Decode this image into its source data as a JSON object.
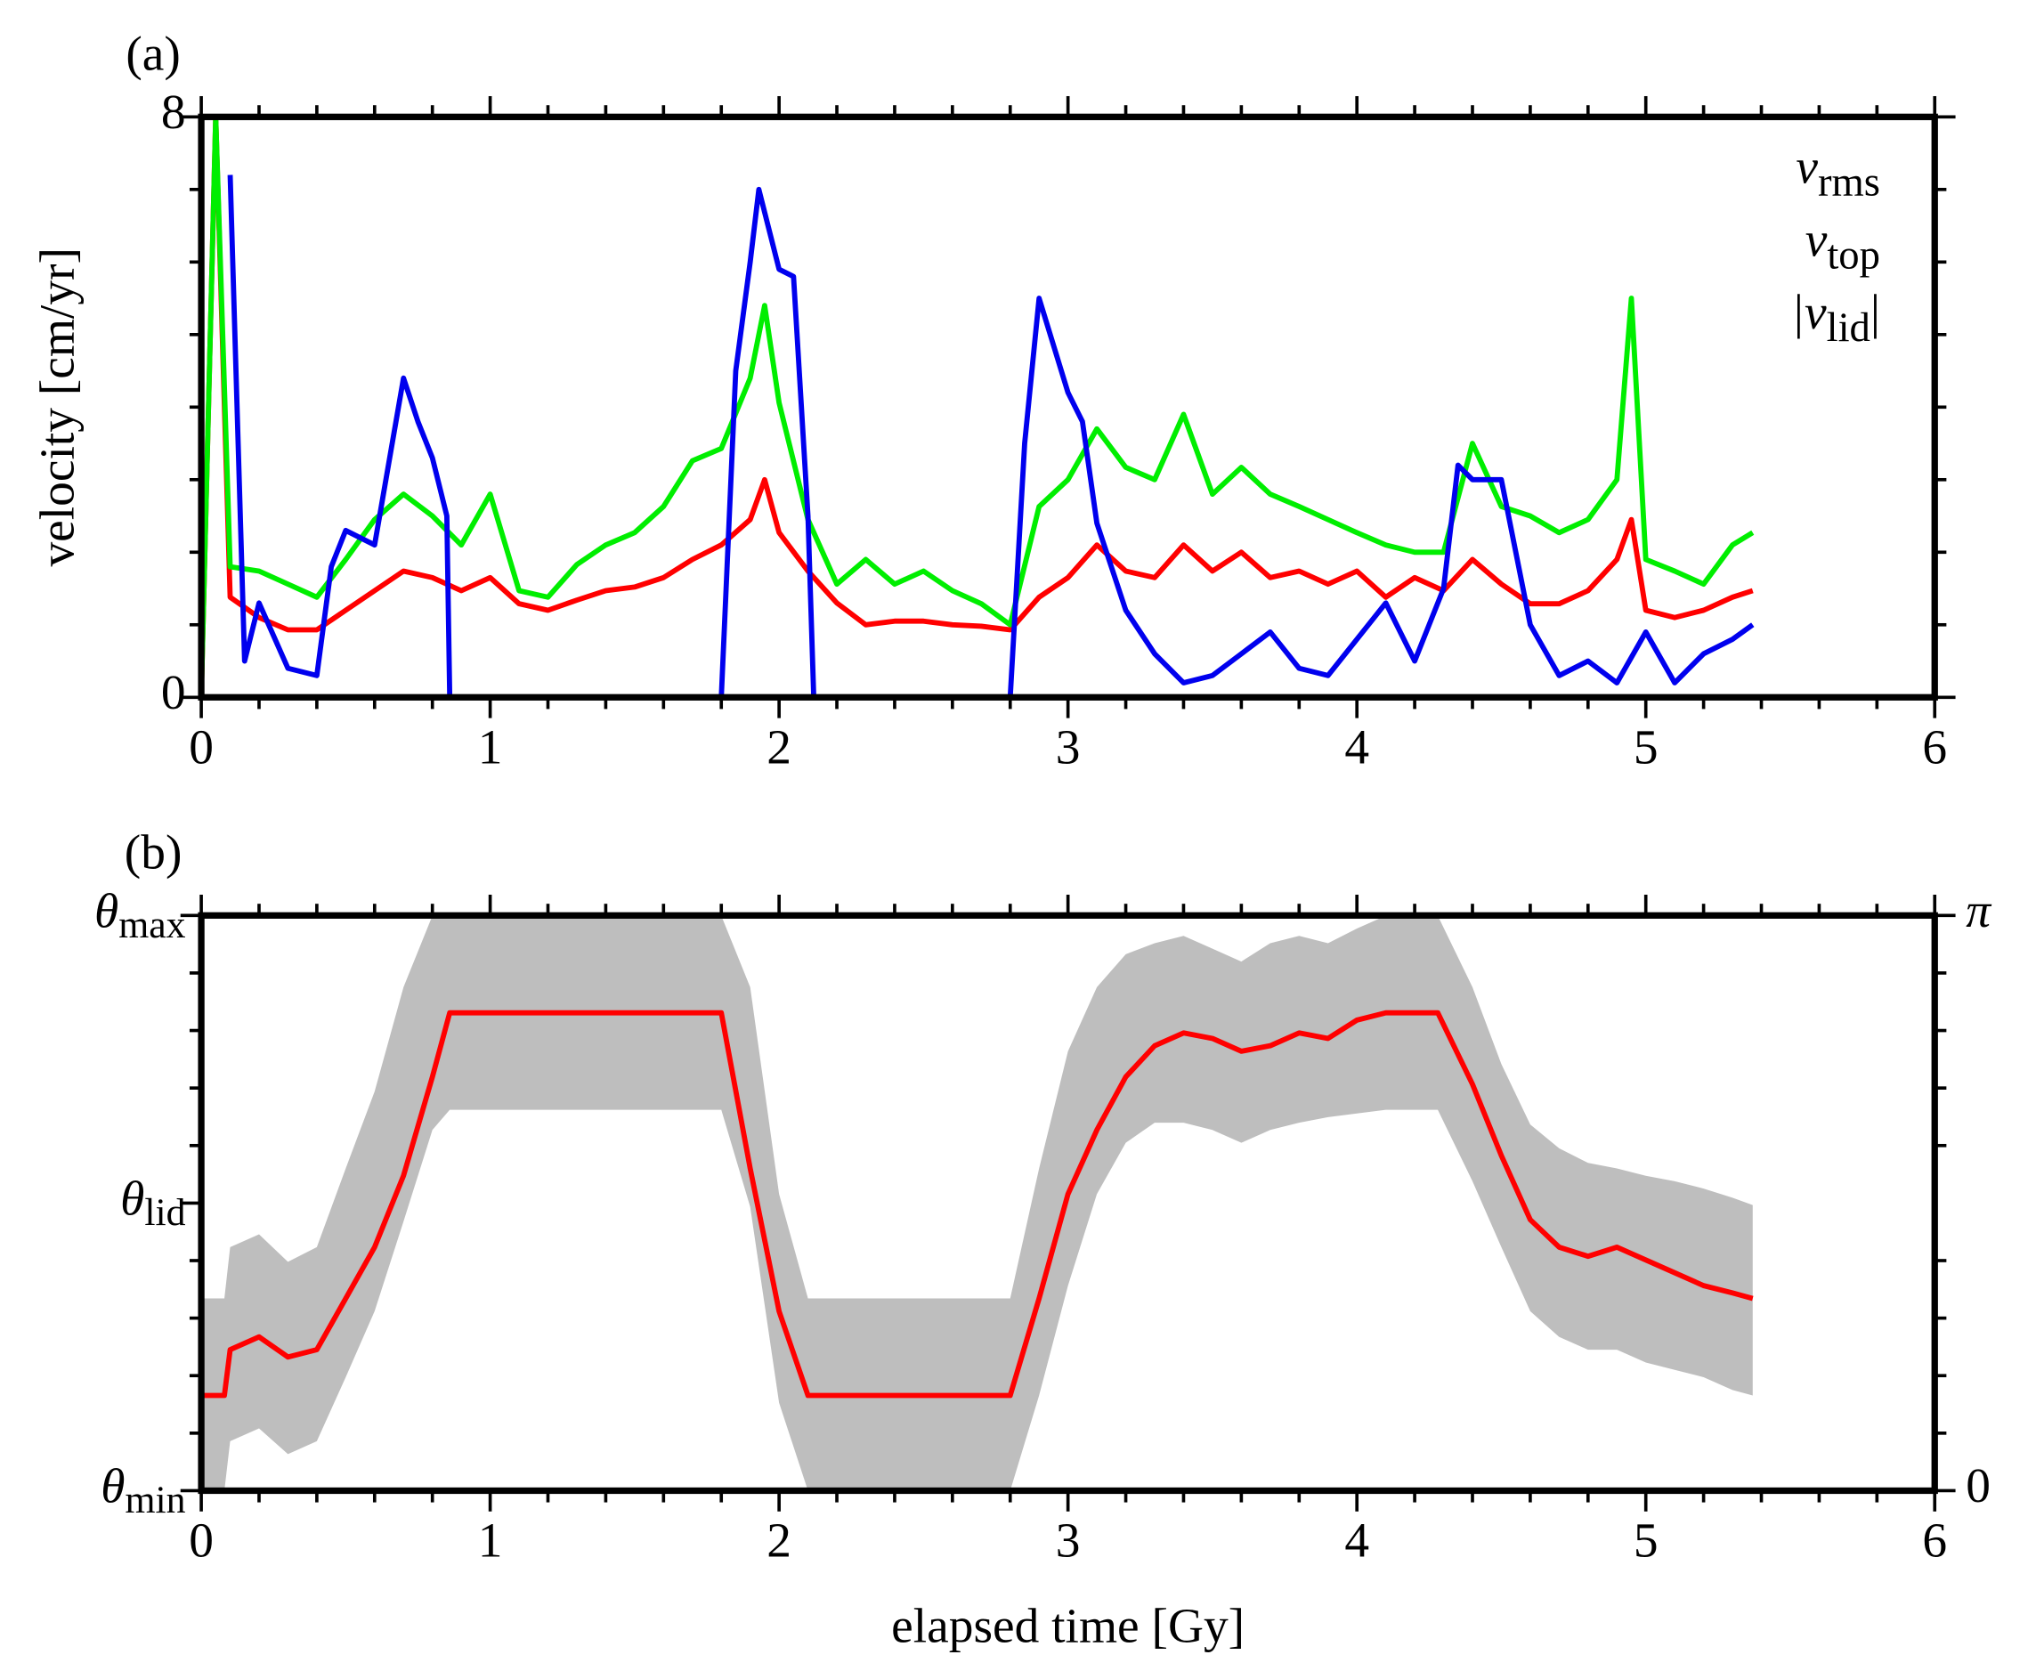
{
  "chart_data": [
    {
      "type": "line",
      "panel_label": "(a)",
      "ylabel": "velocity [cm/yr]",
      "xlim": [
        0,
        6
      ],
      "xticks": [
        0,
        1,
        2,
        3,
        4,
        5,
        6
      ],
      "xminorticks": [
        0.2,
        0.4,
        0.6,
        0.8,
        1.2,
        1.4,
        1.6,
        1.8,
        2.2,
        2.4,
        2.6,
        2.8,
        3.2,
        3.4,
        3.6,
        3.8,
        4.2,
        4.4,
        4.6,
        4.8,
        5.2,
        5.4,
        5.6,
        5.8
      ],
      "ylim": [
        0,
        8
      ],
      "yticks": [
        0,
        8
      ],
      "yminorticks": [
        1,
        2,
        3,
        4,
        5,
        6,
        7
      ],
      "legend": "upper right",
      "series": [
        {
          "name": "v",
          "subscript": "rms",
          "color": "#ff0000",
          "x": [
            0,
            0.05,
            0.1,
            0.2,
            0.3,
            0.4,
            0.5,
            0.6,
            0.7,
            0.8,
            0.9,
            1.0,
            1.1,
            1.2,
            1.3,
            1.4,
            1.5,
            1.6,
            1.7,
            1.8,
            1.9,
            1.95,
            2.0,
            2.1,
            2.2,
            2.3,
            2.4,
            2.5,
            2.6,
            2.7,
            2.8,
            2.9,
            3.0,
            3.1,
            3.2,
            3.3,
            3.4,
            3.5,
            3.6,
            3.7,
            3.8,
            3.9,
            4.0,
            4.1,
            4.2,
            4.3,
            4.4,
            4.5,
            4.6,
            4.7,
            4.8,
            4.9,
            4.95,
            5.0,
            5.1,
            5.2,
            5.3,
            5.37
          ],
          "values": [
            0,
            8,
            1.38,
            1.1,
            0.93,
            0.93,
            1.2,
            1.47,
            1.74,
            1.65,
            1.47,
            1.65,
            1.29,
            1.2,
            1.34,
            1.47,
            1.52,
            1.65,
            1.9,
            2.1,
            2.45,
            3.0,
            2.27,
            1.74,
            1.3,
            1.0,
            1.05,
            1.05,
            1.0,
            0.98,
            0.93,
            1.38,
            1.65,
            2.1,
            1.74,
            1.65,
            2.1,
            1.74,
            2.0,
            1.65,
            1.74,
            1.56,
            1.74,
            1.38,
            1.65,
            1.47,
            1.9,
            1.56,
            1.29,
            1.29,
            1.47,
            1.9,
            2.45,
            1.2,
            1.1,
            1.2,
            1.38,
            1.47
          ]
        },
        {
          "name": "v",
          "subscript": "top",
          "color": "#00ee00",
          "x": [
            0,
            0.05,
            0.1,
            0.2,
            0.3,
            0.4,
            0.5,
            0.6,
            0.7,
            0.8,
            0.9,
            1.0,
            1.1,
            1.2,
            1.3,
            1.4,
            1.5,
            1.6,
            1.7,
            1.8,
            1.9,
            1.95,
            2.0,
            2.1,
            2.2,
            2.3,
            2.4,
            2.5,
            2.6,
            2.7,
            2.8,
            2.9,
            3.0,
            3.1,
            3.2,
            3.3,
            3.4,
            3.5,
            3.6,
            3.7,
            3.8,
            3.9,
            4.0,
            4.1,
            4.2,
            4.3,
            4.4,
            4.5,
            4.6,
            4.7,
            4.8,
            4.9,
            4.95,
            5.0,
            5.1,
            5.2,
            5.3,
            5.37
          ],
          "values": [
            0,
            8,
            1.8,
            1.74,
            1.56,
            1.38,
            1.9,
            2.45,
            2.8,
            2.5,
            2.1,
            2.8,
            1.47,
            1.38,
            1.83,
            2.1,
            2.27,
            2.63,
            3.26,
            3.43,
            4.4,
            5.4,
            4.06,
            2.45,
            1.56,
            1.9,
            1.56,
            1.74,
            1.47,
            1.29,
            1.0,
            2.63,
            3.0,
            3.7,
            3.17,
            3.0,
            3.9,
            2.8,
            3.17,
            2.8,
            2.63,
            2.45,
            2.27,
            2.1,
            2.0,
            2.0,
            3.5,
            2.63,
            2.5,
            2.27,
            2.45,
            3.0,
            5.5,
            1.9,
            1.74,
            1.56,
            2.1,
            2.27
          ]
        },
        {
          "name": "|v",
          "subscript": "lid",
          "suffix": "|",
          "color": "#0000ee",
          "x": [
            0.1,
            0.15,
            0.2,
            0.3,
            0.4,
            0.45,
            0.5,
            0.6,
            0.7,
            0.75,
            0.8,
            0.85,
            0.86,
            1.0,
            1.8,
            1.85,
            1.9,
            1.93,
            2.0,
            2.05,
            2.1,
            2.12,
            2.5,
            2.8,
            2.85,
            2.9,
            3.0,
            3.05,
            3.1,
            3.2,
            3.3,
            3.4,
            3.5,
            3.6,
            3.7,
            3.8,
            3.9,
            4.0,
            4.1,
            4.2,
            4.3,
            4.35,
            4.4,
            4.5,
            4.6,
            4.7,
            4.8,
            4.9,
            5.0,
            5.1,
            5.2,
            5.3,
            5.37
          ],
          "values": [
            7.2,
            0.5,
            1.3,
            0.4,
            0.3,
            1.8,
            2.3,
            2.1,
            4.4,
            3.8,
            3.3,
            2.5,
            0,
            null,
            0,
            4.5,
            6.0,
            7.0,
            5.9,
            5.8,
            2.5,
            0,
            null,
            0,
            3.5,
            5.5,
            4.2,
            3.8,
            2.4,
            1.2,
            0.6,
            0.2,
            0.3,
            0.6,
            0.9,
            0.4,
            0.3,
            0.8,
            1.3,
            0.5,
            1.5,
            3.2,
            3.0,
            3.0,
            1.0,
            0.3,
            0.5,
            0.2,
            0.9,
            0.2,
            0.6,
            0.8,
            1.0
          ]
        }
      ]
    },
    {
      "type": "band",
      "panel_label": "(b)",
      "xlabel": "elapsed time [Gy]",
      "xlim": [
        0,
        6
      ],
      "xticks": [
        0,
        1,
        2,
        3,
        4,
        5,
        6
      ],
      "xminorticks": [
        0.2,
        0.4,
        0.6,
        0.8,
        1.2,
        1.4,
        1.6,
        1.8,
        2.2,
        2.4,
        2.6,
        2.8,
        3.2,
        3.4,
        3.6,
        3.8,
        4.2,
        4.4,
        4.6,
        4.8,
        5.2,
        5.4,
        5.6,
        5.8
      ],
      "ylim": [
        0,
        3.14159
      ],
      "yticks": [
        {
          "value": 0,
          "label": "θ",
          "sub": "min"
        },
        {
          "value": 1.5708,
          "label": "θ",
          "sub": "lid"
        },
        {
          "value": 3.14159,
          "label": "θ",
          "sub": "max"
        }
      ],
      "yminorticks": [
        0.31416,
        0.62832,
        0.94248,
        1.25664,
        1.88496,
        2.19911,
        2.51327,
        2.82743
      ],
      "y2lim": [
        0,
        3.14159
      ],
      "y2ticks": [
        0,
        {
          "value": 3.14159,
          "label": "π"
        }
      ],
      "x": [
        0,
        0.08,
        0.1,
        0.2,
        0.3,
        0.4,
        0.5,
        0.6,
        0.7,
        0.8,
        0.86,
        1.8,
        1.9,
        2.0,
        2.1,
        2.8,
        2.9,
        3.0,
        3.1,
        3.2,
        3.3,
        3.4,
        3.5,
        3.6,
        3.7,
        3.8,
        3.9,
        4.0,
        4.1,
        4.28,
        4.4,
        4.5,
        4.6,
        4.7,
        4.8,
        4.9,
        5.0,
        5.1,
        5.2,
        5.3,
        5.37
      ],
      "series": [
        {
          "kind": "band",
          "color": "#bebebe",
          "upper": [
            1.05,
            1.05,
            1.33,
            1.4,
            1.25,
            1.33,
            1.76,
            2.18,
            2.75,
            3.14,
            3.14,
            3.14,
            2.75,
            1.62,
            1.05,
            1.05,
            1.76,
            2.4,
            2.75,
            2.93,
            2.99,
            3.03,
            2.96,
            2.89,
            2.99,
            3.03,
            2.99,
            3.07,
            3.14,
            3.14,
            2.75,
            2.33,
            2.0,
            1.87,
            1.79,
            1.76,
            1.72,
            1.69,
            1.65,
            1.6,
            1.56
          ],
          "lower": [
            0,
            0,
            0.27,
            0.34,
            0.2,
            0.27,
            0.62,
            0.98,
            1.47,
            1.97,
            2.08,
            2.08,
            1.55,
            0.48,
            0,
            0,
            0.52,
            1.12,
            1.62,
            1.9,
            2.01,
            2.01,
            1.97,
            1.9,
            1.97,
            2.01,
            2.04,
            2.06,
            2.08,
            2.08,
            1.69,
            1.33,
            0.98,
            0.84,
            0.77,
            0.77,
            0.7,
            0.66,
            0.62,
            0.55,
            0.52
          ]
        },
        {
          "kind": "line",
          "color": "#ff0000",
          "values": [
            0.52,
            0.52,
            0.77,
            0.84,
            0.73,
            0.77,
            1.05,
            1.33,
            1.72,
            2.26,
            2.61,
            2.61,
            1.76,
            0.98,
            0.52,
            0.52,
            1.05,
            1.62,
            1.97,
            2.26,
            2.43,
            2.5,
            2.47,
            2.4,
            2.43,
            2.5,
            2.47,
            2.57,
            2.61,
            2.61,
            2.22,
            1.83,
            1.48,
            1.33,
            1.28,
            1.33,
            1.26,
            1.19,
            1.12,
            1.08,
            1.05
          ]
        }
      ]
    }
  ]
}
